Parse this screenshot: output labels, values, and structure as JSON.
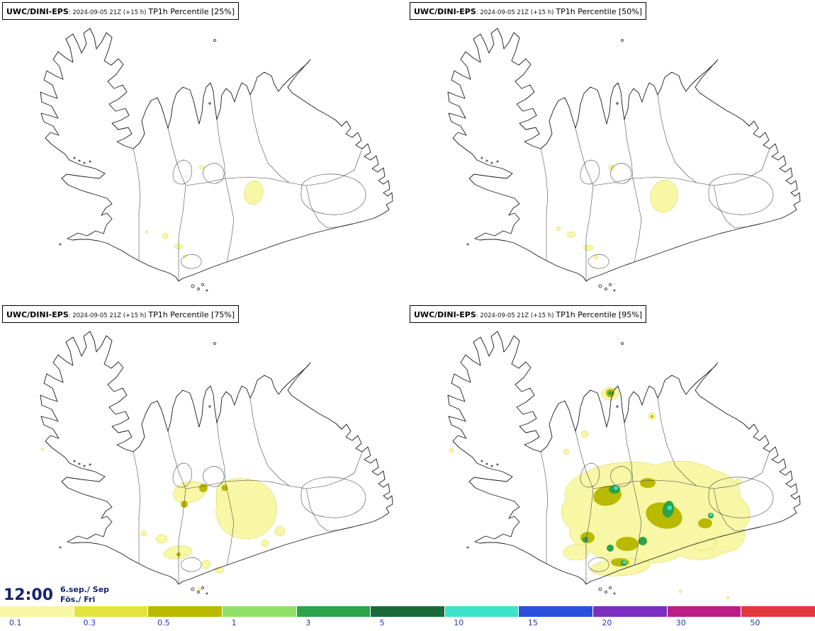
{
  "page": {
    "background": "#ffffff",
    "region": "Iceland"
  },
  "panels": [
    {
      "title_bold": "UWC/DINI-EPS",
      "title_meta": ": 2024-09-05 21Z (+15 h)",
      "title_main": "TP1h Percentile [25%]",
      "percentile": "25%"
    },
    {
      "title_bold": "UWC/DINI-EPS",
      "title_meta": ": 2024-09-05 21Z (+15 h)",
      "title_main": "TP1h Percentile [50%]",
      "percentile": "50%"
    },
    {
      "title_bold": "UWC/DINI-EPS",
      "title_meta": ": 2024-09-05 21Z (+15 h)",
      "title_main": "TP1h Percentile [75%]",
      "percentile": "75%"
    },
    {
      "title_bold": "UWC/DINI-EPS",
      "title_meta": ": 2024-09-05 21Z (+15 h)",
      "title_main": "TP1h Percentile [95%]",
      "percentile": "95%"
    }
  ],
  "timebar": {
    "time": "12:00",
    "date_top": "6.sep./ Sep",
    "date_bottom": "Fös./ Fri",
    "text_color": "#14246e"
  },
  "legend": {
    "label_color": "#2336b4",
    "segments": [
      {
        "label": "0.1",
        "color": "#f7f7a6"
      },
      {
        "label": "0.3",
        "color": "#e4e43e"
      },
      {
        "label": "0.5",
        "color": "#b9b900"
      },
      {
        "label": "1",
        "color": "#8fe064"
      },
      {
        "label": "3",
        "color": "#2aa44a"
      },
      {
        "label": "5",
        "color": "#1b6b3a"
      },
      {
        "label": "10",
        "color": "#3ce3c8"
      },
      {
        "label": "15",
        "color": "#2b50dd"
      },
      {
        "label": "20",
        "color": "#7a2fc0"
      },
      {
        "label": "30",
        "color": "#bb1f86"
      },
      {
        "label": "50",
        "color": "#e3383e"
      }
    ]
  }
}
